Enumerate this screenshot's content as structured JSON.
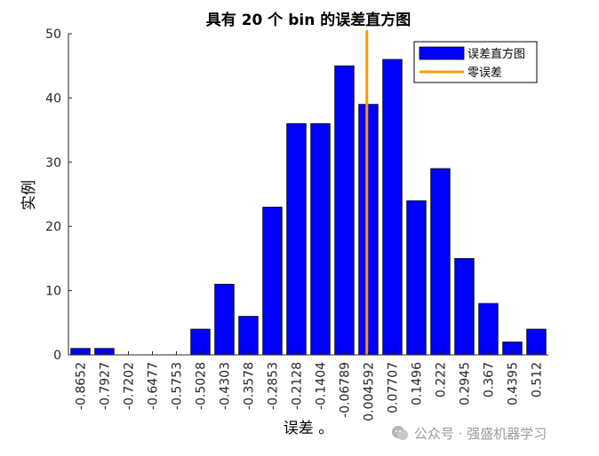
{
  "chart_data": {
    "type": "bar",
    "title": "具有 20 个 bin 的误差直方图",
    "xlabel": "误差 。",
    "ylabel": "实例",
    "categories": [
      "-0.8652",
      "-0.7927",
      "-0.7202",
      "-0.6477",
      "-0.5753",
      "-0.5028",
      "-0.4303",
      "-0.3578",
      "-0.2853",
      "-0.2128",
      "-0.1404",
      "-0.06789",
      "0.004592",
      "0.07707",
      "0.1496",
      "0.222",
      "0.2945",
      "0.367",
      "0.4395",
      "0.512"
    ],
    "series": [
      {
        "name": "误差直方图",
        "values": [
          1,
          1,
          0,
          0,
          0,
          4,
          11,
          6,
          23,
          36,
          36,
          45,
          39,
          46,
          24,
          29,
          15,
          8,
          2,
          4
        ],
        "color": "#0000ff"
      }
    ],
    "reference_line": {
      "name": "零误差",
      "x": 0.0,
      "color": "#ff9900"
    },
    "ylim": [
      0,
      50
    ],
    "yticks": [
      0,
      10,
      20,
      30,
      40,
      50
    ],
    "legend_position": "top-right",
    "grid": false
  },
  "watermark": {
    "text": "公众号 · 强盛机器学习"
  }
}
